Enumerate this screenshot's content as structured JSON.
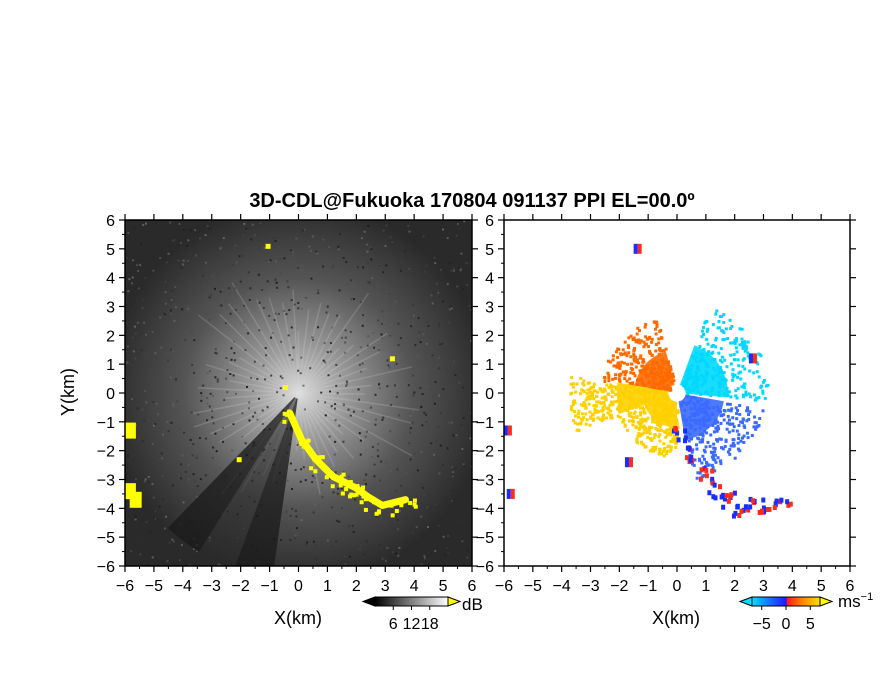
{
  "figure": {
    "title": "3D-CDL@Fukuoka 170804 091137 PPI EL=00.0º"
  },
  "chart_data": [
    {
      "type": "heatmap",
      "panel": "left",
      "xlabel": "X(km)",
      "ylabel": "Y(km)",
      "xlim": [
        -6,
        6
      ],
      "ylim": [
        -6,
        6
      ],
      "xticks": [
        -6,
        -5,
        -4,
        -3,
        -2,
        -1,
        0,
        1,
        2,
        3,
        4,
        5,
        6
      ],
      "yticks": [
        -6,
        -5,
        -4,
        -3,
        -2,
        -1,
        0,
        1,
        2,
        3,
        4,
        5,
        6
      ],
      "colormap": "grayscale",
      "background": "#2a2a2a",
      "highlight_color": "#ffff00",
      "colorbar": {
        "unit": "dB",
        "ticks": [
          6,
          12,
          18
        ],
        "range": [
          0,
          24
        ]
      },
      "shadow_sectors_deg": [
        [
          188,
          200
        ],
        [
          200,
          212
        ],
        [
          212,
          224
        ]
      ],
      "yellow_regions": [
        {
          "label": "ridge",
          "points": [
            [
              -0.3,
              -0.7
            ],
            [
              0.1,
              -1.6
            ],
            [
              0.6,
              -2.3
            ],
            [
              1.2,
              -2.9
            ],
            [
              1.6,
              -3.1
            ],
            [
              2.0,
              -3.3
            ],
            [
              2.4,
              -3.6
            ],
            [
              2.9,
              -3.9
            ],
            [
              3.3,
              -3.8
            ],
            [
              3.7,
              -3.7
            ]
          ]
        },
        {
          "label": "edge",
          "points": [
            [
              -5.9,
              -3.3
            ],
            [
              -5.7,
              -3.6
            ],
            [
              -5.9,
              -1.2
            ]
          ]
        },
        {
          "label": "specks",
          "points": [
            [
              -1.0,
              5.0
            ],
            [
              -2.0,
              -2.4
            ],
            [
              -0.4,
              0.1
            ],
            [
              3.3,
              1.1
            ]
          ]
        }
      ]
    },
    {
      "type": "heatmap",
      "panel": "right",
      "xlabel": "X(km)",
      "ylabel": "",
      "xlim": [
        -6,
        6
      ],
      "ylim": [
        -6,
        6
      ],
      "xticks": [
        -6,
        -5,
        -4,
        -3,
        -2,
        -1,
        0,
        1,
        2,
        3,
        4,
        5,
        6
      ],
      "yticks": [
        -6,
        -5,
        -4,
        -3,
        -2,
        -1,
        0,
        1,
        2,
        3,
        4,
        5,
        6
      ],
      "colormap": "diverging blue-red",
      "background": "#ffffff",
      "colorbar": {
        "unit": "ms",
        "unit_superscript": "−1",
        "ticks": [
          -5,
          0,
          5
        ],
        "range": [
          -7,
          7
        ]
      },
      "sectors": [
        {
          "az_deg": [
            100,
            170
          ],
          "r_km": [
            0.3,
            3.0
          ],
          "velocity_ms": -3.5,
          "color": "#3a6aff"
        },
        {
          "az_deg": [
            20,
            95
          ],
          "r_km": [
            0.3,
            3.2
          ],
          "velocity_ms": -4.5,
          "color": "#00d8ff"
        },
        {
          "az_deg": [
            280,
            345
          ],
          "r_km": [
            0.3,
            2.7
          ],
          "velocity_ms": 3.0,
          "color": "#ff6a00"
        },
        {
          "az_deg": [
            250,
            280
          ],
          "r_km": [
            0.3,
            3.8
          ],
          "velocity_ms": 5.0,
          "color": "#ffd000"
        },
        {
          "az_deg": [
            180,
            250
          ],
          "r_km": [
            0.3,
            2.2
          ],
          "velocity_ms": 5.0,
          "color": "#ffd000"
        }
      ],
      "ridge": [
        [
          0.0,
          -1.4
        ],
        [
          0.4,
          -2.1
        ],
        [
          0.9,
          -2.8
        ],
        [
          1.3,
          -3.3
        ],
        [
          1.8,
          -3.6
        ],
        [
          2.1,
          -4.1
        ],
        [
          2.6,
          -3.8
        ],
        [
          3.1,
          -3.8
        ],
        [
          3.6,
          -3.8
        ]
      ],
      "specks": [
        [
          -1.4,
          5.0
        ],
        [
          -1.7,
          -2.4
        ],
        [
          -5.8,
          -3.5
        ],
        [
          -5.9,
          -1.3
        ],
        [
          2.6,
          1.2
        ]
      ]
    }
  ]
}
